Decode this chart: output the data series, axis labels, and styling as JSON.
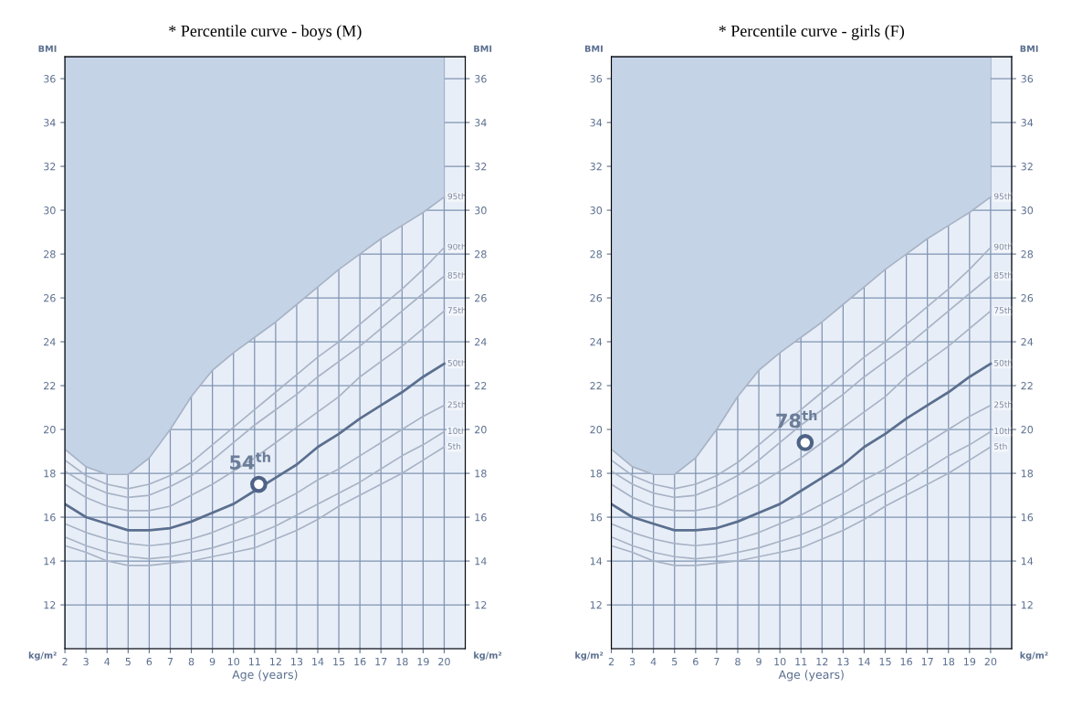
{
  "chart_data": [
    {
      "type": "line",
      "title": "* Percentile curve - boys (M)",
      "xlabel": "Age (years)",
      "x": [
        2,
        3,
        4,
        5,
        6,
        7,
        8,
        9,
        10,
        11,
        12,
        13,
        14,
        15,
        16,
        17,
        18,
        19,
        20
      ],
      "xlim": [
        2,
        21
      ],
      "xticks": [
        2,
        3,
        4,
        5,
        6,
        7,
        8,
        9,
        10,
        11,
        12,
        13,
        14,
        15,
        16,
        17,
        18,
        19,
        20
      ],
      "ylim": [
        10,
        37
      ],
      "yticks": [
        12,
        14,
        16,
        18,
        20,
        22,
        24,
        26,
        28,
        30,
        32,
        34,
        36
      ],
      "y2lim": [
        10,
        37
      ],
      "y2ticks": [
        12,
        14,
        16,
        18,
        20,
        22,
        24,
        26,
        28,
        30,
        32,
        34,
        36
      ],
      "grid": true,
      "legend": false,
      "marker": "none",
      "line_style": "solid",
      "annotations": [
        "BMI",
        "kg/m²",
        {
          "text": "54$^{th}$",
          "x": 11.2,
          "y": 17.5
        }
      ],
      "series": [
        {
          "name": "95th",
          "color": "#a7b3c6",
          "values": [
            19.1,
            18.3,
            17.95,
            17.95,
            18.7,
            20.0,
            21.5,
            22.7,
            23.5,
            24.2,
            24.9,
            25.7,
            26.5,
            27.3,
            28.0,
            28.7,
            29.3,
            29.9,
            30.6
          ],
          "lower": [
            19.1,
            18.3,
            17.95,
            17.95,
            18.7,
            20.0,
            21.5,
            22.7,
            23.5,
            24.2,
            24.9,
            25.7,
            26.5,
            27.3,
            28.0,
            28.7,
            29.3,
            29.9,
            30.6
          ],
          "upper": [
            37,
            37,
            37,
            37,
            37,
            37,
            37,
            37,
            37,
            37,
            37,
            37,
            37,
            37,
            37,
            37,
            37,
            37,
            37
          ]
        },
        {
          "name": "90th",
          "color": "#a7b3c6",
          "values": [
            18.6,
            17.9,
            17.5,
            17.3,
            17.5,
            17.9,
            18.5,
            19.3,
            20.1,
            20.9,
            21.7,
            22.5,
            23.3,
            24.0,
            24.8,
            25.6,
            26.4,
            27.3,
            28.3
          ]
        },
        {
          "name": "85th",
          "color": "#a7b3c6",
          "values": [
            18.1,
            17.5,
            17.1,
            16.9,
            17.0,
            17.4,
            17.9,
            18.6,
            19.4,
            20.2,
            20.9,
            21.6,
            22.4,
            23.1,
            23.8,
            24.6,
            25.4,
            26.2,
            27.0
          ]
        },
        {
          "name": "75th",
          "color": "#a7b3c6",
          "values": [
            17.5,
            16.9,
            16.5,
            16.3,
            16.3,
            16.5,
            17.0,
            17.5,
            18.1,
            18.7,
            19.4,
            20.1,
            20.8,
            21.5,
            22.4,
            23.1,
            23.8,
            24.6,
            25.4
          ]
        },
        {
          "name": "50th",
          "color": "#5b6f8f",
          "values": [
            16.6,
            16.0,
            15.7,
            15.4,
            15.4,
            15.5,
            15.8,
            16.2,
            16.6,
            17.2,
            17.8,
            18.4,
            19.2,
            19.8,
            20.5,
            21.1,
            21.7,
            22.4,
            23.0
          ]
        },
        {
          "name": "25th",
          "color": "#a7b3c6",
          "values": [
            15.7,
            15.3,
            15.0,
            14.8,
            14.7,
            14.8,
            15.0,
            15.3,
            15.7,
            16.1,
            16.6,
            17.1,
            17.7,
            18.2,
            18.8,
            19.4,
            20.0,
            20.6,
            21.1
          ]
        },
        {
          "name": "10th",
          "color": "#a7b3c6",
          "values": [
            15.1,
            14.7,
            14.4,
            14.2,
            14.1,
            14.2,
            14.4,
            14.6,
            14.9,
            15.2,
            15.6,
            16.1,
            16.6,
            17.1,
            17.6,
            18.2,
            18.8,
            19.3,
            19.9
          ]
        },
        {
          "name": "5th",
          "color": "#a7b3c6",
          "values": [
            14.7,
            14.4,
            14.0,
            13.8,
            13.8,
            13.9,
            14.0,
            14.2,
            14.4,
            14.6,
            15.0,
            15.4,
            15.9,
            16.5,
            17.0,
            17.5,
            18.0,
            18.6,
            19.2
          ]
        },
        {
          "type": "scatter",
          "marker": "circle",
          "color": "#4e6385",
          "x": [
            11.2
          ],
          "values": [
            17.5
          ]
        }
      ]
    },
    {
      "type": "line",
      "title": "* Percentile curve - girls (F)",
      "xlabel": "Age (years)",
      "x": [
        2,
        3,
        4,
        5,
        6,
        7,
        8,
        9,
        10,
        11,
        12,
        13,
        14,
        15,
        16,
        17,
        18,
        19,
        20
      ],
      "xlim": [
        2,
        21
      ],
      "xticks": [
        2,
        3,
        4,
        5,
        6,
        7,
        8,
        9,
        10,
        11,
        12,
        13,
        14,
        15,
        16,
        17,
        18,
        19,
        20
      ],
      "ylim": [
        10,
        37
      ],
      "yticks": [
        12,
        14,
        16,
        18,
        20,
        22,
        24,
        26,
        28,
        30,
        32,
        34,
        36
      ],
      "y2lim": [
        10,
        37
      ],
      "y2ticks": [
        12,
        14,
        16,
        18,
        20,
        22,
        24,
        26,
        28,
        30,
        32,
        34,
        36
      ],
      "grid": true,
      "legend": false,
      "marker": "none",
      "line_style": "solid",
      "annotations": [
        "BMI",
        "kg/m²",
        {
          "text": "78$^{th}$",
          "x": 11.2,
          "y": 19.4
        }
      ],
      "series": [
        {
          "name": "95th",
          "color": "#a7b3c6",
          "values": [
            19.1,
            18.3,
            17.95,
            17.95,
            18.7,
            20.0,
            21.5,
            22.7,
            23.5,
            24.2,
            24.9,
            25.7,
            26.5,
            27.3,
            28.0,
            28.7,
            29.3,
            29.9,
            30.6
          ],
          "lower": [
            19.1,
            18.3,
            17.95,
            17.95,
            18.7,
            20.0,
            21.5,
            22.7,
            23.5,
            24.2,
            24.9,
            25.7,
            26.5,
            27.3,
            28.0,
            28.7,
            29.3,
            29.9,
            30.6
          ],
          "upper": [
            37,
            37,
            37,
            37,
            37,
            37,
            37,
            37,
            37,
            37,
            37,
            37,
            37,
            37,
            37,
            37,
            37,
            37,
            37
          ]
        },
        {
          "name": "90th",
          "color": "#a7b3c6",
          "values": [
            18.6,
            17.9,
            17.5,
            17.3,
            17.5,
            17.9,
            18.5,
            19.3,
            20.1,
            20.9,
            21.7,
            22.5,
            23.3,
            24.0,
            24.8,
            25.6,
            26.4,
            27.3,
            28.3
          ]
        },
        {
          "name": "85th",
          "color": "#a7b3c6",
          "values": [
            18.1,
            17.5,
            17.1,
            16.9,
            17.0,
            17.4,
            17.9,
            18.6,
            19.4,
            20.2,
            20.9,
            21.6,
            22.4,
            23.1,
            23.8,
            24.6,
            25.4,
            26.2,
            27.0
          ]
        },
        {
          "name": "75th",
          "color": "#a7b3c6",
          "values": [
            17.5,
            16.9,
            16.5,
            16.3,
            16.3,
            16.5,
            17.0,
            17.5,
            18.1,
            18.7,
            19.4,
            20.1,
            20.8,
            21.5,
            22.4,
            23.1,
            23.8,
            24.6,
            25.4
          ]
        },
        {
          "name": "50th",
          "color": "#5b6f8f",
          "values": [
            16.6,
            16.0,
            15.7,
            15.4,
            15.4,
            15.5,
            15.8,
            16.2,
            16.6,
            17.2,
            17.8,
            18.4,
            19.2,
            19.8,
            20.5,
            21.1,
            21.7,
            22.4,
            23.0
          ]
        },
        {
          "name": "25th",
          "color": "#a7b3c6",
          "values": [
            15.7,
            15.3,
            15.0,
            14.8,
            14.7,
            14.8,
            15.0,
            15.3,
            15.7,
            16.1,
            16.6,
            17.1,
            17.7,
            18.2,
            18.8,
            19.4,
            20.0,
            20.6,
            21.1
          ]
        },
        {
          "name": "10th",
          "color": "#a7b3c6",
          "values": [
            15.1,
            14.7,
            14.4,
            14.2,
            14.1,
            14.2,
            14.4,
            14.6,
            14.9,
            15.2,
            15.6,
            16.1,
            16.6,
            17.1,
            17.6,
            18.2,
            18.8,
            19.3,
            19.9
          ]
        },
        {
          "name": "5th",
          "color": "#a7b3c6",
          "values": [
            14.7,
            14.4,
            14.0,
            13.8,
            13.8,
            13.9,
            14.0,
            14.2,
            14.4,
            14.6,
            15.0,
            15.4,
            15.9,
            16.5,
            17.0,
            17.5,
            18.0,
            18.6,
            19.2
          ]
        },
        {
          "type": "scatter",
          "marker": "circle",
          "color": "#4e6385",
          "x": [
            11.2
          ],
          "values": [
            19.4
          ]
        }
      ]
    }
  ]
}
